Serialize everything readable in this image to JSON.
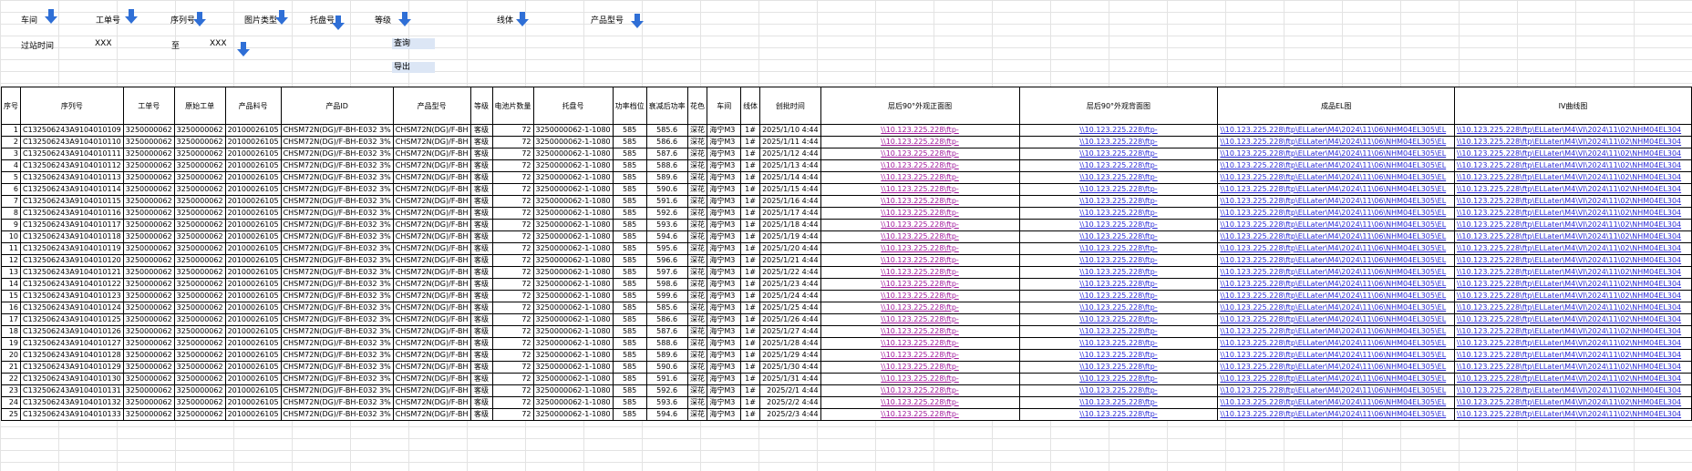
{
  "filters": {
    "row1": [
      "车间",
      "工单号",
      "序列号",
      "图片类型",
      "托盘号",
      "等级",
      "线体",
      "产品型号"
    ],
    "row2": {
      "pass_time": "过站时间",
      "v1": "XXX",
      "zhi": "至",
      "v2": "XXX",
      "query": "查询",
      "export": "导出"
    }
  },
  "colors": {
    "link_visited": "#a0189b",
    "link": "#2b2bd6",
    "button_bg": "#dce6f5",
    "arrow": "#2f6fd6"
  },
  "table": {
    "headers": [
      "序号",
      "序列号",
      "工单号",
      "原始工单",
      "产品料号",
      "产品ID",
      "产品型号",
      "等级",
      "电池片数量",
      "托盘号",
      "功率档位",
      "衰减后功率",
      "花色",
      "车间",
      "线体",
      "创批时间",
      "层后90°外观正面图",
      "层后90°外观背面图",
      "成品EL图",
      "IV曲线图"
    ],
    "rows": [
      [
        "1",
        "C132506243A9104010109",
        "3250000062",
        "3250000062",
        "20100026105",
        "CHSM72N(DG)/F-BH-E032  3%",
        "CHSM72N(DG)/F-BH",
        "客级",
        "72",
        "3250000062-1-1080",
        "585",
        "585.6",
        "深花",
        "海宁M3",
        "1#",
        "2025/1/10 4:44",
        "\\\\10.123.225.228\\ftp-",
        "\\\\10.123.225.228\\ftp-",
        "\\\\10.123.225.228\\ftp\\ELLater\\M4\\2024\\11\\06\\NHM04EL305\\EL",
        "\\\\10.123.225.228\\ftp\\ELLater\\M4\\VI\\2024\\11\\02\\NHM04EL304"
      ],
      [
        "2",
        "C132506243A9104010110",
        "3250000062",
        "3250000062",
        "20100026105",
        "CHSM72N(DG)/F-BH-E032  3%",
        "CHSM72N(DG)/F-BH",
        "客级",
        "72",
        "3250000062-1-1080",
        "585",
        "586.6",
        "深花",
        "海宁M3",
        "1#",
        "2025/1/11 4:44",
        "\\\\10.123.225.228\\ftp-",
        "\\\\10.123.225.228\\ftp-",
        "\\\\10.123.225.228\\ftp\\ELLater\\M4\\2024\\11\\06\\NHM04EL305\\EL",
        "\\\\10.123.225.228\\ftp\\ELLater\\M4\\VI\\2024\\11\\02\\NHM04EL304"
      ],
      [
        "3",
        "C132506243A9104010111",
        "3250000062",
        "3250000062",
        "20100026105",
        "CHSM72N(DG)/F-BH-E032  3%",
        "CHSM72N(DG)/F-BH",
        "客级",
        "72",
        "3250000062-1-1080",
        "585",
        "587.6",
        "深花",
        "海宁M3",
        "1#",
        "2025/1/12 4:44",
        "\\\\10.123.225.228\\ftp-",
        "\\\\10.123.225.228\\ftp-",
        "\\\\10.123.225.228\\ftp\\ELLater\\M4\\2024\\11\\06\\NHM04EL305\\EL",
        "\\\\10.123.225.228\\ftp\\ELLater\\M4\\VI\\2024\\11\\02\\NHM04EL304"
      ],
      [
        "4",
        "C132506243A9104010112",
        "3250000062",
        "3250000062",
        "20100026105",
        "CHSM72N(DG)/F-BH-E032  3%",
        "CHSM72N(DG)/F-BH",
        "客级",
        "72",
        "3250000062-1-1080",
        "585",
        "588.6",
        "深花",
        "海宁M3",
        "1#",
        "2025/1/13 4:44",
        "\\\\10.123.225.228\\ftp-",
        "\\\\10.123.225.228\\ftp-",
        "\\\\10.123.225.228\\ftp\\ELLater\\M4\\2024\\11\\06\\NHM04EL305\\EL",
        "\\\\10.123.225.228\\ftp\\ELLater\\M4\\VI\\2024\\11\\02\\NHM04EL304"
      ],
      [
        "5",
        "C132506243A9104010113",
        "3250000062",
        "3250000062",
        "20100026105",
        "CHSM72N(DG)/F-BH-E032  3%",
        "CHSM72N(DG)/F-BH",
        "客级",
        "72",
        "3250000062-1-1080",
        "585",
        "589.6",
        "深花",
        "海宁M3",
        "1#",
        "2025/1/14 4:44",
        "\\\\10.123.225.228\\ftp-",
        "\\\\10.123.225.228\\ftp-",
        "\\\\10.123.225.228\\ftp\\ELLater\\M4\\2024\\11\\06\\NHM04EL305\\EL",
        "\\\\10.123.225.228\\ftp\\ELLater\\M4\\VI\\2024\\11\\02\\NHM04EL304"
      ],
      [
        "6",
        "C132506243A9104010114",
        "3250000062",
        "3250000062",
        "20100026105",
        "CHSM72N(DG)/F-BH-E032  3%",
        "CHSM72N(DG)/F-BH",
        "客级",
        "72",
        "3250000062-1-1080",
        "585",
        "590.6",
        "深花",
        "海宁M3",
        "1#",
        "2025/1/15 4:44",
        "\\\\10.123.225.228\\ftp-",
        "\\\\10.123.225.228\\ftp-",
        "\\\\10.123.225.228\\ftp\\ELLater\\M4\\2024\\11\\06\\NHM04EL305\\EL",
        "\\\\10.123.225.228\\ftp\\ELLater\\M4\\VI\\2024\\11\\02\\NHM04EL304"
      ],
      [
        "7",
        "C132506243A9104010115",
        "3250000062",
        "3250000062",
        "20100026105",
        "CHSM72N(DG)/F-BH-E032  3%",
        "CHSM72N(DG)/F-BH",
        "客级",
        "72",
        "3250000062-1-1080",
        "585",
        "591.6",
        "深花",
        "海宁M3",
        "1#",
        "2025/1/16 4:44",
        "\\\\10.123.225.228\\ftp-",
        "\\\\10.123.225.228\\ftp-",
        "\\\\10.123.225.228\\ftp\\ELLater\\M4\\2024\\11\\06\\NHM04EL305\\EL",
        "\\\\10.123.225.228\\ftp\\ELLater\\M4\\VI\\2024\\11\\02\\NHM04EL304"
      ],
      [
        "8",
        "C132506243A9104010116",
        "3250000062",
        "3250000062",
        "20100026105",
        "CHSM72N(DG)/F-BH-E032  3%",
        "CHSM72N(DG)/F-BH",
        "客级",
        "72",
        "3250000062-1-1080",
        "585",
        "592.6",
        "深花",
        "海宁M3",
        "1#",
        "2025/1/17 4:44",
        "\\\\10.123.225.228\\ftp-",
        "\\\\10.123.225.228\\ftp-",
        "\\\\10.123.225.228\\ftp\\ELLater\\M4\\2024\\11\\06\\NHM04EL305\\EL",
        "\\\\10.123.225.228\\ftp\\ELLater\\M4\\VI\\2024\\11\\02\\NHM04EL304"
      ],
      [
        "9",
        "C132506243A9104010117",
        "3250000062",
        "3250000062",
        "20100026105",
        "CHSM72N(DG)/F-BH-E032  3%",
        "CHSM72N(DG)/F-BH",
        "客级",
        "72",
        "3250000062-1-1080",
        "585",
        "593.6",
        "深花",
        "海宁M3",
        "1#",
        "2025/1/18 4:44",
        "\\\\10.123.225.228\\ftp-",
        "\\\\10.123.225.228\\ftp-",
        "\\\\10.123.225.228\\ftp\\ELLater\\M4\\2024\\11\\06\\NHM04EL305\\EL",
        "\\\\10.123.225.228\\ftp\\ELLater\\M4\\VI\\2024\\11\\02\\NHM04EL304"
      ],
      [
        "10",
        "C132506243A9104010118",
        "3250000062",
        "3250000062",
        "20100026105",
        "CHSM72N(DG)/F-BH-E032  3%",
        "CHSM72N(DG)/F-BH",
        "客级",
        "72",
        "3250000062-1-1080",
        "585",
        "594.6",
        "深花",
        "海宁M3",
        "1#",
        "2025/1/19 4:44",
        "\\\\10.123.225.228\\ftp-",
        "\\\\10.123.225.228\\ftp-",
        "\\\\10.123.225.228\\ftp\\ELLater\\M4\\2024\\11\\06\\NHM04EL305\\EL",
        "\\\\10.123.225.228\\ftp\\ELLater\\M4\\VI\\2024\\11\\02\\NHM04EL304"
      ],
      [
        "11",
        "C132506243A9104010119",
        "3250000062",
        "3250000062",
        "20100026105",
        "CHSM72N(DG)/F-BH-E032  3%",
        "CHSM72N(DG)/F-BH",
        "客级",
        "72",
        "3250000062-1-1080",
        "585",
        "595.6",
        "深花",
        "海宁M3",
        "1#",
        "2025/1/20 4:44",
        "\\\\10.123.225.228\\ftp-",
        "\\\\10.123.225.228\\ftp-",
        "\\\\10.123.225.228\\ftp\\ELLater\\M4\\2024\\11\\06\\NHM04EL305\\EL",
        "\\\\10.123.225.228\\ftp\\ELLater\\M4\\VI\\2024\\11\\02\\NHM04EL304"
      ],
      [
        "12",
        "C132506243A9104010120",
        "3250000062",
        "3250000062",
        "20100026105",
        "CHSM72N(DG)/F-BH-E032  3%",
        "CHSM72N(DG)/F-BH",
        "客级",
        "72",
        "3250000062-1-1080",
        "585",
        "596.6",
        "深花",
        "海宁M3",
        "1#",
        "2025/1/21 4:44",
        "\\\\10.123.225.228\\ftp-",
        "\\\\10.123.225.228\\ftp-",
        "\\\\10.123.225.228\\ftp\\ELLater\\M4\\2024\\11\\06\\NHM04EL305\\EL",
        "\\\\10.123.225.228\\ftp\\ELLater\\M4\\VI\\2024\\11\\02\\NHM04EL304"
      ],
      [
        "13",
        "C132506243A9104010121",
        "3250000062",
        "3250000062",
        "20100026105",
        "CHSM72N(DG)/F-BH-E032  3%",
        "CHSM72N(DG)/F-BH",
        "客级",
        "72",
        "3250000062-1-1080",
        "585",
        "597.6",
        "深花",
        "海宁M3",
        "1#",
        "2025/1/22 4:44",
        "\\\\10.123.225.228\\ftp-",
        "\\\\10.123.225.228\\ftp-",
        "\\\\10.123.225.228\\ftp\\ELLater\\M4\\2024\\11\\06\\NHM04EL305\\EL",
        "\\\\10.123.225.228\\ftp\\ELLater\\M4\\VI\\2024\\11\\02\\NHM04EL304"
      ],
      [
        "14",
        "C132506243A9104010122",
        "3250000062",
        "3250000062",
        "20100026105",
        "CHSM72N(DG)/F-BH-E032  3%",
        "CHSM72N(DG)/F-BH",
        "客级",
        "72",
        "3250000062-1-1080",
        "585",
        "598.6",
        "深花",
        "海宁M3",
        "1#",
        "2025/1/23 4:44",
        "\\\\10.123.225.228\\ftp-",
        "\\\\10.123.225.228\\ftp-",
        "\\\\10.123.225.228\\ftp\\ELLater\\M4\\2024\\11\\06\\NHM04EL305\\EL",
        "\\\\10.123.225.228\\ftp\\ELLater\\M4\\VI\\2024\\11\\02\\NHM04EL304"
      ],
      [
        "15",
        "C132506243A9104010123",
        "3250000062",
        "3250000062",
        "20100026105",
        "CHSM72N(DG)/F-BH-E032  3%",
        "CHSM72N(DG)/F-BH",
        "客级",
        "72",
        "3250000062-1-1080",
        "585",
        "599.6",
        "深花",
        "海宁M3",
        "1#",
        "2025/1/24 4:44",
        "\\\\10.123.225.228\\ftp-",
        "\\\\10.123.225.228\\ftp-",
        "\\\\10.123.225.228\\ftp\\ELLater\\M4\\2024\\11\\06\\NHM04EL305\\EL",
        "\\\\10.123.225.228\\ftp\\ELLater\\M4\\VI\\2024\\11\\02\\NHM04EL304"
      ],
      [
        "16",
        "C132506243A9104010124",
        "3250000062",
        "3250000062",
        "20100026105",
        "CHSM72N(DG)/F-BH-E032  3%",
        "CHSM72N(DG)/F-BH",
        "客级",
        "72",
        "3250000062-1-1080",
        "585",
        "585.6",
        "深花",
        "海宁M3",
        "1#",
        "2025/1/25 4:44",
        "\\\\10.123.225.228\\ftp-",
        "\\\\10.123.225.228\\ftp-",
        "\\\\10.123.225.228\\ftp\\ELLater\\M4\\2024\\11\\06\\NHM04EL305\\EL",
        "\\\\10.123.225.228\\ftp\\ELLater\\M4\\VI\\2024\\11\\02\\NHM04EL304"
      ],
      [
        "17",
        "C132506243A9104010125",
        "3250000062",
        "3250000062",
        "20100026105",
        "CHSM72N(DG)/F-BH-E032  3%",
        "CHSM72N(DG)/F-BH",
        "客级",
        "72",
        "3250000062-1-1080",
        "585",
        "586.6",
        "深花",
        "海宁M3",
        "1#",
        "2025/1/26 4:44",
        "\\\\10.123.225.228\\ftp-",
        "\\\\10.123.225.228\\ftp-",
        "\\\\10.123.225.228\\ftp\\ELLater\\M4\\2024\\11\\06\\NHM04EL305\\EL",
        "\\\\10.123.225.228\\ftp\\ELLater\\M4\\VI\\2024\\11\\02\\NHM04EL304"
      ],
      [
        "18",
        "C132506243A9104010126",
        "3250000062",
        "3250000062",
        "20100026105",
        "CHSM72N(DG)/F-BH-E032  3%",
        "CHSM72N(DG)/F-BH",
        "客级",
        "72",
        "3250000062-1-1080",
        "585",
        "587.6",
        "深花",
        "海宁M3",
        "1#",
        "2025/1/27 4:44",
        "\\\\10.123.225.228\\ftp-",
        "\\\\10.123.225.228\\ftp-",
        "\\\\10.123.225.228\\ftp\\ELLater\\M4\\2024\\11\\06\\NHM04EL305\\EL",
        "\\\\10.123.225.228\\ftp\\ELLater\\M4\\VI\\2024\\11\\02\\NHM04EL304"
      ],
      [
        "19",
        "C132506243A9104010127",
        "3250000062",
        "3250000062",
        "20100026105",
        "CHSM72N(DG)/F-BH-E032  3%",
        "CHSM72N(DG)/F-BH",
        "客级",
        "72",
        "3250000062-1-1080",
        "585",
        "588.6",
        "深花",
        "海宁M3",
        "1#",
        "2025/1/28 4:44",
        "\\\\10.123.225.228\\ftp-",
        "\\\\10.123.225.228\\ftp-",
        "\\\\10.123.225.228\\ftp\\ELLater\\M4\\2024\\11\\06\\NHM04EL305\\EL",
        "\\\\10.123.225.228\\ftp\\ELLater\\M4\\VI\\2024\\11\\02\\NHM04EL304"
      ],
      [
        "20",
        "C132506243A9104010128",
        "3250000062",
        "3250000062",
        "20100026105",
        "CHSM72N(DG)/F-BH-E032  3%",
        "CHSM72N(DG)/F-BH",
        "客级",
        "72",
        "3250000062-1-1080",
        "585",
        "589.6",
        "深花",
        "海宁M3",
        "1#",
        "2025/1/29 4:44",
        "\\\\10.123.225.228\\ftp-",
        "\\\\10.123.225.228\\ftp-",
        "\\\\10.123.225.228\\ftp\\ELLater\\M4\\2024\\11\\06\\NHM04EL305\\EL",
        "\\\\10.123.225.228\\ftp\\ELLater\\M4\\VI\\2024\\11\\02\\NHM04EL304"
      ],
      [
        "21",
        "C132506243A9104010129",
        "3250000062",
        "3250000062",
        "20100026105",
        "CHSM72N(DG)/F-BH-E032  3%",
        "CHSM72N(DG)/F-BH",
        "客级",
        "72",
        "3250000062-1-1080",
        "585",
        "590.6",
        "深花",
        "海宁M3",
        "1#",
        "2025/1/30 4:44",
        "\\\\10.123.225.228\\ftp-",
        "\\\\10.123.225.228\\ftp-",
        "\\\\10.123.225.228\\ftp\\ELLater\\M4\\2024\\11\\06\\NHM04EL305\\EL",
        "\\\\10.123.225.228\\ftp\\ELLater\\M4\\VI\\2024\\11\\02\\NHM04EL304"
      ],
      [
        "22",
        "C132506243A9104010130",
        "3250000062",
        "3250000062",
        "20100026105",
        "CHSM72N(DG)/F-BH-E032  3%",
        "CHSM72N(DG)/F-BH",
        "客级",
        "72",
        "3250000062-1-1080",
        "585",
        "591.6",
        "深花",
        "海宁M3",
        "1#",
        "2025/1/31 4:44",
        "\\\\10.123.225.228\\ftp-",
        "\\\\10.123.225.228\\ftp-",
        "\\\\10.123.225.228\\ftp\\ELLater\\M4\\2024\\11\\06\\NHM04EL305\\EL",
        "\\\\10.123.225.228\\ftp\\ELLater\\M4\\VI\\2024\\11\\02\\NHM04EL304"
      ],
      [
        "23",
        "C132506243A9104010131",
        "3250000062",
        "3250000062",
        "20100026105",
        "CHSM72N(DG)/F-BH-E032  3%",
        "CHSM72N(DG)/F-BH",
        "客级",
        "72",
        "3250000062-1-1080",
        "585",
        "592.6",
        "深花",
        "海宁M3",
        "1#",
        "2025/2/1 4:44",
        "\\\\10.123.225.228\\ftp-",
        "\\\\10.123.225.228\\ftp-",
        "\\\\10.123.225.228\\ftp\\ELLater\\M4\\2024\\11\\06\\NHM04EL305\\EL",
        "\\\\10.123.225.228\\ftp\\ELLater\\M4\\VI\\2024\\11\\02\\NHM04EL304"
      ],
      [
        "24",
        "C132506243A9104010132",
        "3250000062",
        "3250000062",
        "20100026105",
        "CHSM72N(DG)/F-BH-E032  3%",
        "CHSM72N(DG)/F-BH",
        "客级",
        "72",
        "3250000062-1-1080",
        "585",
        "593.6",
        "深花",
        "海宁M3",
        "1#",
        "2025/2/2 4:44",
        "\\\\10.123.225.228\\ftp-",
        "\\\\10.123.225.228\\ftp-",
        "\\\\10.123.225.228\\ftp\\ELLater\\M4\\2024\\11\\06\\NHM04EL305\\EL",
        "\\\\10.123.225.228\\ftp\\ELLater\\M4\\VI\\2024\\11\\02\\NHM04EL304"
      ],
      [
        "25",
        "C132506243A9104010133",
        "3250000062",
        "3250000062",
        "20100026105",
        "CHSM72N(DG)/F-BH-E032  3%",
        "CHSM72N(DG)/F-BH",
        "客级",
        "72",
        "3250000062-1-1080",
        "585",
        "594.6",
        "深花",
        "海宁M3",
        "1#",
        "2025/2/3 4:44",
        "\\\\10.123.225.228\\ftp-",
        "\\\\10.123.225.228\\ftp-",
        "\\\\10.123.225.228\\ftp\\ELLater\\M4\\2024\\11\\06\\NHM04EL305\\EL",
        "\\\\10.123.225.228\\ftp\\ELLater\\M4\\VI\\2024\\11\\02\\NHM04EL304"
      ]
    ]
  }
}
